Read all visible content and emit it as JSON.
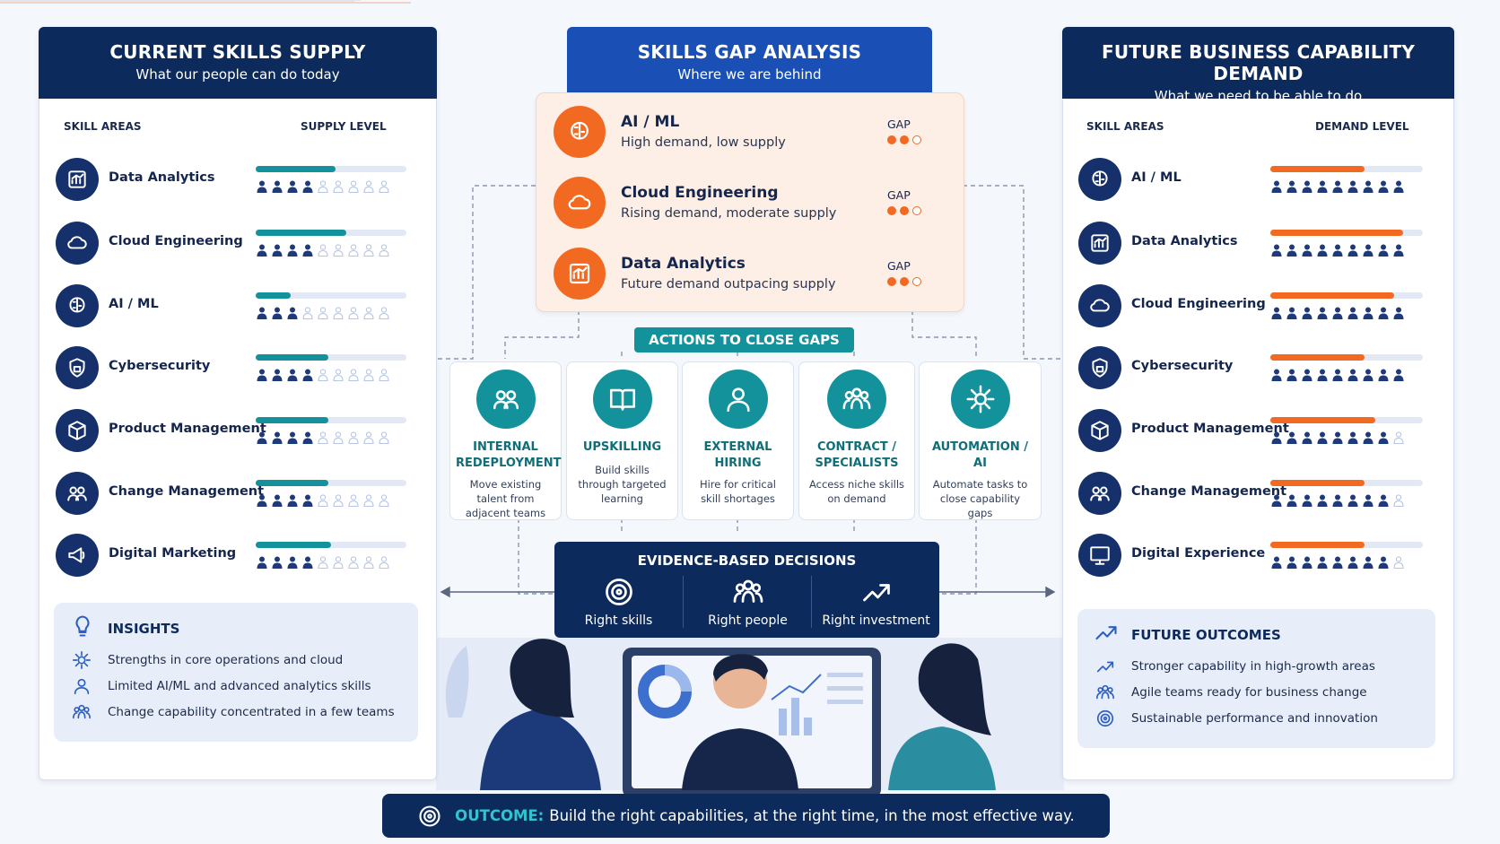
{
  "supply": {
    "title": "CURRENT SKILLS SUPPLY",
    "subtitle": "What our people can do today",
    "col_skill": "SKILL AREAS",
    "col_level": "SUPPLY LEVEL",
    "max_icons": 9,
    "skills": [
      {
        "name": "Data Analytics",
        "bar": 53,
        "filled": 4
      },
      {
        "name": "Cloud Engineering",
        "bar": 60,
        "filled": 4
      },
      {
        "name": "AI / ML",
        "bar": 23,
        "filled": 3
      },
      {
        "name": "Cybersecurity",
        "bar": 48,
        "filled": 4
      },
      {
        "name": "Product Management",
        "bar": 48,
        "filled": 4
      },
      {
        "name": "Change Management",
        "bar": 48,
        "filled": 4
      },
      {
        "name": "Digital Marketing",
        "bar": 50,
        "filled": 4
      }
    ],
    "insights": {
      "title": "INSIGHTS",
      "items": [
        "Strengths in core operations and cloud",
        "Limited AI/ML and advanced analytics skills",
        "Change capability concentrated in a few teams"
      ]
    }
  },
  "gap": {
    "title": "SKILLS GAP ANALYSIS",
    "subtitle": "Where we are behind",
    "dots": 3,
    "items": [
      {
        "name": "AI / ML",
        "desc": "High demand, low supply",
        "label": "GAP",
        "filled": 2
      },
      {
        "name": "Cloud Engineering",
        "desc": "Rising demand, moderate supply",
        "label": "GAP",
        "filled": 2
      },
      {
        "name": "Data Analytics",
        "desc": "Future demand outpacing supply",
        "label": "GAP",
        "filled": 2
      }
    ]
  },
  "actions": {
    "title": "ACTIONS TO CLOSE GAPS",
    "items": [
      {
        "title": "INTERNAL REDEPLOYMENT",
        "desc": "Move existing talent from adjacent teams"
      },
      {
        "title": "UPSKILLING",
        "desc": "Build skills through targeted learning"
      },
      {
        "title": "EXTERNAL HIRING",
        "desc": "Hire for critical skill shortages"
      },
      {
        "title": "CONTRACT / SPECIALISTS",
        "desc": "Access niche skills on demand"
      },
      {
        "title": "AUTOMATION / AI",
        "desc": "Automate tasks to close capability gaps"
      }
    ]
  },
  "decisions": {
    "title": "EVIDENCE-BASED DECISIONS",
    "items": [
      "Right skills",
      "Right people",
      "Right investment"
    ]
  },
  "demand": {
    "title": "FUTURE BUSINESS CAPABILITY DEMAND",
    "subtitle": "What we need to be able to do",
    "col_skill": "SKILL AREAS",
    "col_level": "DEMAND LEVEL",
    "max_icons": 9,
    "skills": [
      {
        "name": "AI / ML",
        "bar": 62,
        "filled": 9
      },
      {
        "name": "Data Analytics",
        "bar": 87,
        "filled": 9
      },
      {
        "name": "Cloud Engineering",
        "bar": 81,
        "filled": 9
      },
      {
        "name": "Cybersecurity",
        "bar": 62,
        "filled": 9
      },
      {
        "name": "Product Management",
        "bar": 69,
        "filled": 8
      },
      {
        "name": "Change Management",
        "bar": 62,
        "filled": 8
      },
      {
        "name": "Digital Experience",
        "bar": 62,
        "filled": 8
      }
    ],
    "outcomes": {
      "title": "FUTURE OUTCOMES",
      "items": [
        "Stronger capability in high-growth areas",
        "Agile teams ready for business change",
        "Sustainable performance and innovation"
      ]
    }
  },
  "outcome": {
    "label": "OUTCOME:",
    "text": "Build the right capabilities, at the right time, in the most effective way."
  }
}
